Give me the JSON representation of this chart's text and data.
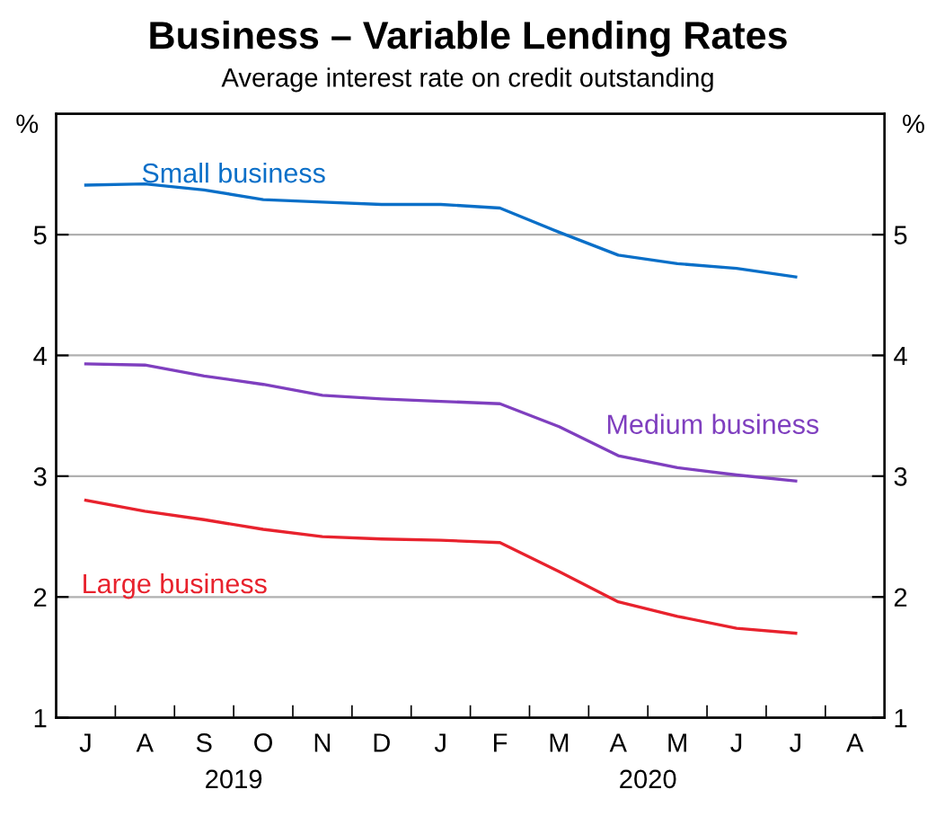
{
  "chart_data": {
    "type": "line",
    "title": "Business – Variable Lending Rates",
    "subtitle": "Average interest rate on credit outstanding",
    "ylabel": "%",
    "y2label": "%",
    "categories": [
      "J",
      "A",
      "S",
      "O",
      "N",
      "D",
      "J",
      "F",
      "M",
      "A",
      "M",
      "J",
      "J",
      "A"
    ],
    "series": [
      {
        "name": "Small business",
        "color": "#0a6fc8",
        "values": [
          5.41,
          5.42,
          5.37,
          5.29,
          5.27,
          5.25,
          5.25,
          5.22,
          5.02,
          4.83,
          4.76,
          4.72,
          4.65,
          null
        ]
      },
      {
        "name": "Medium business",
        "color": "#7f3fbf",
        "values": [
          3.93,
          3.92,
          3.83,
          3.76,
          3.67,
          3.64,
          3.62,
          3.6,
          3.41,
          3.17,
          3.07,
          3.01,
          2.96,
          null
        ]
      },
      {
        "name": "Large business",
        "color": "#e8222d",
        "values": [
          2.8,
          2.71,
          2.64,
          2.56,
          2.5,
          2.48,
          2.47,
          2.45,
          2.21,
          1.96,
          1.84,
          1.74,
          1.7,
          null
        ]
      }
    ],
    "annotations": [
      "2019",
      "2020"
    ],
    "ylim": [
      1,
      6
    ],
    "yticks": [
      1,
      2,
      3,
      4,
      5
    ],
    "y2lim": [
      1,
      6
    ],
    "y2ticks": [
      1,
      2,
      3,
      4,
      5
    ],
    "grid": "y",
    "legend": false,
    "marker": "none",
    "line_style": "solid"
  }
}
